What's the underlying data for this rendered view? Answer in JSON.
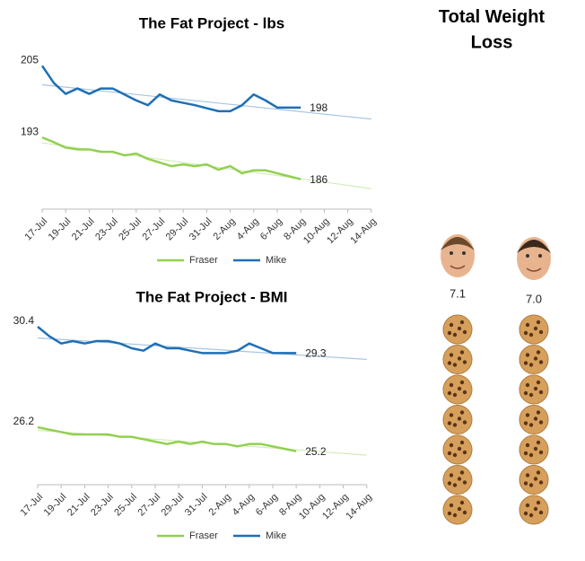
{
  "chart_data": [
    {
      "type": "line",
      "title": "The Fat Project - lbs",
      "categories": [
        "17-Jul",
        null,
        "19-Jul",
        null,
        "21-Jul",
        null,
        "23-Jul",
        null,
        "25-Jul",
        null,
        "27-Jul",
        null,
        "29-Jul",
        null,
        "31-Jul",
        null,
        "2-Aug",
        null,
        "4-Aug",
        null,
        "6-Aug",
        null,
        "8-Aug",
        null,
        "10-Aug",
        null,
        "12-Aug",
        null,
        "14-Aug"
      ],
      "series": [
        {
          "name": "Fraser",
          "color": "#92d050",
          "values": [
            193,
            192.2,
            191.3,
            191,
            191,
            190.6,
            190.6,
            190,
            190.3,
            189.4,
            188.8,
            188.2,
            188.5,
            188.2,
            188.5,
            187.6,
            188.2,
            187,
            187.5,
            187.5,
            187,
            186.5,
            186,
            null,
            null,
            null,
            null,
            null,
            null
          ]
        },
        {
          "name": "Mike",
          "color": "#1f6fb5",
          "values": [
            205,
            202.1,
            200.3,
            201.2,
            200.3,
            201.2,
            201.2,
            200.2,
            199.2,
            198.4,
            200.2,
            199.2,
            198.8,
            198.4,
            197.9,
            197.4,
            197.4,
            198.4,
            200.2,
            199.2,
            198,
            198,
            198,
            null,
            null,
            null,
            null,
            null,
            null
          ]
        }
      ],
      "ylim": [
        181,
        210
      ],
      "trendline": true,
      "legend": "bottom"
    },
    {
      "type": "line",
      "title": "The Fat Project - BMI",
      "categories": [
        "17-Jul",
        null,
        "19-Jul",
        null,
        "21-Jul",
        null,
        "23-Jul",
        null,
        "25-Jul",
        null,
        "27-Jul",
        null,
        "29-Jul",
        null,
        "31-Jul",
        null,
        "2-Aug",
        null,
        "4-Aug",
        null,
        "6-Aug",
        null,
        "8-Aug",
        null,
        "10-Aug",
        null,
        "12-Aug",
        null,
        "14-Aug"
      ],
      "series": [
        {
          "name": "Fraser",
          "color": "#92d050",
          "values": [
            26.2,
            26.1,
            26,
            25.9,
            25.9,
            25.9,
            25.9,
            25.8,
            25.8,
            25.7,
            25.6,
            25.5,
            25.6,
            25.5,
            25.6,
            25.5,
            25.5,
            25.4,
            25.5,
            25.5,
            25.4,
            25.3,
            25.2,
            null,
            null,
            null,
            null,
            null,
            null
          ]
        },
        {
          "name": "Mike",
          "color": "#1f6fb5",
          "values": [
            30.4,
            30,
            29.7,
            29.8,
            29.7,
            29.8,
            29.8,
            29.7,
            29.5,
            29.4,
            29.7,
            29.5,
            29.5,
            29.4,
            29.3,
            29.3,
            29.3,
            29.4,
            29.7,
            29.5,
            29.3,
            29.3,
            29.3,
            null,
            null,
            null,
            null,
            null,
            null
          ]
        }
      ],
      "ylim": [
        23.8,
        31.3
      ],
      "trendline": true,
      "legend": "bottom"
    }
  ],
  "panel": {
    "title_lines": [
      "Total",
      "Weight",
      "Loss"
    ],
    "people": [
      {
        "value": "7.1"
      },
      {
        "value": "7.0"
      }
    ]
  }
}
